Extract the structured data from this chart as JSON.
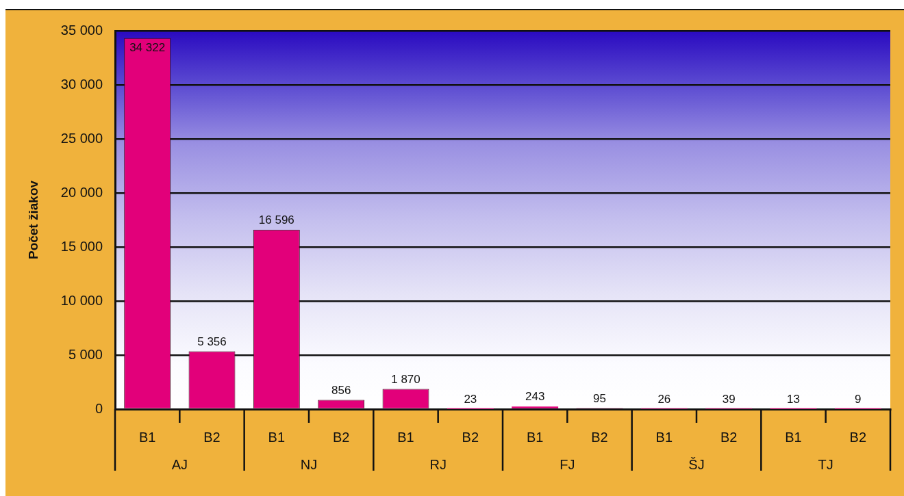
{
  "chart_data": {
    "type": "bar",
    "ylabel": "Počet žiakov",
    "categories": [
      "B1",
      "B2",
      "B1",
      "B2",
      "B1",
      "B2",
      "B1",
      "B2",
      "B1",
      "B2",
      "B1",
      "B2"
    ],
    "values": [
      34322,
      5356,
      16596,
      856,
      1870,
      23,
      243,
      95,
      26,
      39,
      13,
      9
    ],
    "color": "#e2007a",
    "value_labels": [
      "34 322",
      "5 356",
      "16 596",
      "856",
      "1 870",
      "23",
      "243",
      "95",
      "26",
      "39",
      "13",
      "9"
    ],
    "ylim": [
      0,
      35000
    ],
    "yticks": [
      0,
      {
        "value": 5000,
        "label": "5 000"
      },
      {
        "value": 10000,
        "label": "10 000"
      },
      {
        "value": 15000,
        "label": "15 000"
      },
      {
        "value": 20000,
        "label": "20 000"
      },
      {
        "value": 25000,
        "label": "25 000"
      },
      {
        "value": 30000,
        "label": "30 000"
      },
      {
        "value": 35000,
        "label": "35 000"
      }
    ],
    "grid": "y",
    "legend": false,
    "annotations": [
      "AJ",
      "NJ",
      "RJ",
      "FJ",
      "ŠJ",
      "TJ"
    ]
  }
}
